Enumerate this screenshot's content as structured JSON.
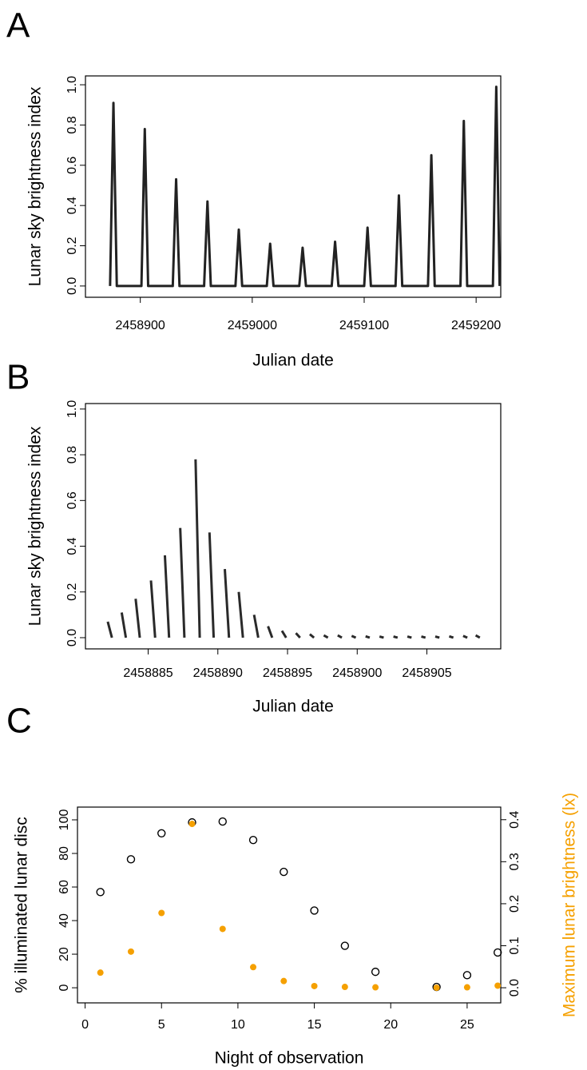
{
  "chart_data": [
    {
      "type": "line",
      "title": "A",
      "xlabel": "Julian date",
      "ylabel": "Lunar sky brightness index",
      "x": [
        2458873,
        2458876,
        2458879,
        2458901,
        2458904,
        2458907,
        2458929,
        2458932,
        2458935,
        2458957,
        2458960,
        2458963,
        2458985,
        2458988,
        2458991,
        2459013,
        2459016,
        2459019,
        2459042,
        2459045,
        2459048,
        2459071,
        2459074,
        2459077,
        2459100,
        2459103,
        2459106,
        2459128,
        2459131,
        2459134,
        2459157,
        2459160,
        2459163,
        2459186,
        2459189,
        2459192,
        2459215,
        2459218,
        2459221
      ],
      "series": [
        {
          "color": "#222222",
          "values": [
            0,
            0.91,
            0,
            0,
            0.78,
            0,
            0,
            0.53,
            0,
            0,
            0.42,
            0,
            0,
            0.28,
            0,
            0,
            0.21,
            0,
            0,
            0.19,
            0,
            0,
            0.22,
            0,
            0,
            0.29,
            0,
            0,
            0.45,
            0,
            0,
            0.65,
            0,
            0,
            0.82,
            0,
            0,
            0.99,
            0
          ]
        }
      ],
      "xlim": [
        2458851,
        2459222
      ],
      "xticks": [
        2458900,
        2459000,
        2459100,
        2459200
      ],
      "ylim": [
        -0.056,
        1.044
      ],
      "yticks": [
        {
          "value": 0,
          "label": "0.0"
        },
        0.2,
        0.4,
        0.6,
        0.8,
        {
          "value": 1,
          "label": "1.0"
        }
      ]
    },
    {
      "type": "line",
      "title": "B",
      "xlabel": "Julian date",
      "ylabel": "Lunar sky brightness index",
      "x": [
        2458882.1,
        2458882.4,
        null,
        2458883.1,
        2458883.4,
        null,
        2458884.1,
        2458884.4,
        null,
        2458885.2,
        2458885.5,
        null,
        2458886.2,
        2458886.5,
        null,
        2458887.3,
        2458887.6,
        null,
        2458888.4,
        2458888.7,
        null,
        2458889.4,
        2458889.7,
        null,
        2458890.5,
        2458890.8,
        null,
        2458891.5,
        2458891.8,
        null,
        2458892.6,
        2458892.9,
        null,
        2458893.6,
        2458893.9,
        null,
        2458894.6,
        2458894.9,
        null,
        2458895.6,
        2458895.9,
        null,
        2458896.6,
        2458896.9,
        null,
        2458897.6,
        2458897.9,
        null,
        2458898.6,
        2458898.9,
        null,
        2458899.6,
        2458899.9,
        null,
        2458900.6,
        2458900.9,
        null,
        2458901.6,
        2458901.9,
        null,
        2458902.6,
        2458902.9,
        null,
        2458903.6,
        2458903.9,
        null,
        2458904.6,
        2458904.9,
        null,
        2458905.6,
        2458905.9,
        null,
        2458906.6,
        2458906.9,
        null,
        2458907.6,
        2458907.9,
        null,
        2458908.5,
        2458908.8
      ],
      "series": [
        {
          "color": "#2a2a2a",
          "values": [
            0.07,
            0,
            null,
            0.11,
            0,
            null,
            0.17,
            0,
            null,
            0.25,
            0,
            null,
            0.36,
            0,
            null,
            0.48,
            0,
            null,
            0.78,
            0,
            null,
            0.46,
            0,
            null,
            0.3,
            0,
            null,
            0.2,
            0,
            null,
            0.1,
            0,
            null,
            0.05,
            0,
            null,
            0.03,
            0,
            null,
            0.02,
            0,
            null,
            0.015,
            0,
            null,
            0.01,
            0,
            null,
            0.01,
            0,
            null,
            0.008,
            0,
            null,
            0.006,
            0,
            null,
            0.005,
            0,
            null,
            0.005,
            0,
            null,
            0.005,
            0,
            null,
            0.005,
            0,
            null,
            0.005,
            0,
            null,
            0.006,
            0,
            null,
            0.008,
            0,
            null,
            0.01,
            0
          ]
        }
      ],
      "xlim": [
        2458880.5,
        2458910.3
      ],
      "xticks": [
        2458885,
        2458890,
        2458895,
        2458900,
        2458905
      ],
      "ylim": [
        -0.049,
        1.024
      ],
      "yticks": [
        {
          "value": 0,
          "label": "0.0"
        },
        0.2,
        0.4,
        0.6,
        0.8,
        {
          "value": 1,
          "label": "1.0"
        }
      ]
    },
    {
      "type": "scatter",
      "title": "C",
      "xlabel": "Night of observation",
      "ylabel": "% illuminated lunar disc",
      "y2label": "Maximum lunar brightness (lx)",
      "y2label_color": "#f5a000",
      "x": [
        1,
        3,
        5,
        7,
        9,
        11,
        13,
        15,
        17,
        19,
        23,
        25,
        27
      ],
      "series": [
        {
          "color": "#000000",
          "filled": false,
          "values": [
            57,
            76.5,
            92,
            98.5,
            99,
            88,
            69,
            46,
            25,
            9.5,
            0.5,
            7.5,
            21
          ]
        },
        {
          "color": "#f5a000",
          "filled": true,
          "axis": "y2",
          "values": [
            0.036,
            0.086,
            0.178,
            0.39,
            0.14,
            0.049,
            0.016,
            0.004,
            0.002,
            0.001,
            0,
            0.001,
            0.005
          ]
        }
      ],
      "xlim": [
        -0.5,
        27.2
      ],
      "xticks": [
        0,
        5,
        10,
        15,
        20,
        25
      ],
      "ylim": [
        -9,
        107.6
      ],
      "yticks": [
        0,
        20,
        40,
        60,
        80,
        100
      ],
      "y2lim": [
        -0.036,
        0.43
      ],
      "y2ticks": [
        {
          "value": 0,
          "label": "0.0"
        },
        0.1,
        0.2,
        0.3,
        0.4
      ]
    }
  ]
}
